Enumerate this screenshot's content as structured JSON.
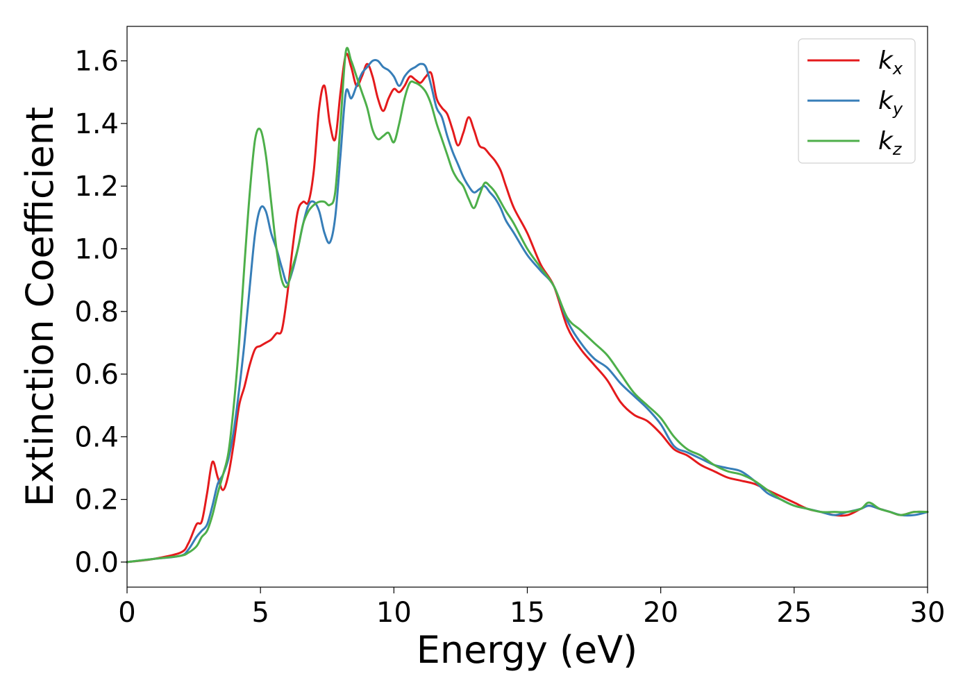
{
  "chart_data": {
    "type": "line",
    "xlabel": "Energy (eV)",
    "ylabel": "Extinction Coefficient",
    "xlim": [
      0,
      30
    ],
    "ylim": [
      -0.08,
      1.71
    ],
    "xticks": [
      0,
      5,
      10,
      15,
      20,
      25,
      30
    ],
    "xtick_labels": [
      "0",
      "5",
      "10",
      "15",
      "20",
      "25",
      "30"
    ],
    "yticks": [
      0.0,
      0.2,
      0.4,
      0.6,
      0.8,
      1.0,
      1.2,
      1.4,
      1.6
    ],
    "ytick_labels": [
      "0.0",
      "0.2",
      "0.4",
      "0.6",
      "0.8",
      "1.0",
      "1.2",
      "1.4",
      "1.6"
    ],
    "grid": false,
    "legend_position": "top-right",
    "series": [
      {
        "name": "k",
        "subscript": "x",
        "color": "#e41a1c",
        "x": [
          0,
          1,
          2,
          2.3,
          2.6,
          2.8,
          3.0,
          3.2,
          3.4,
          3.6,
          3.8,
          4.0,
          4.2,
          4.4,
          4.6,
          4.8,
          5.0,
          5.2,
          5.4,
          5.6,
          5.8,
          6.0,
          6.2,
          6.4,
          6.6,
          6.8,
          7.0,
          7.2,
          7.4,
          7.6,
          7.8,
          8.0,
          8.2,
          8.4,
          8.6,
          8.8,
          9.0,
          9.2,
          9.4,
          9.6,
          9.8,
          10.0,
          10.2,
          10.4,
          10.6,
          10.8,
          11.0,
          11.2,
          11.4,
          11.6,
          11.8,
          12.0,
          12.2,
          12.4,
          12.6,
          12.8,
          13.0,
          13.2,
          13.4,
          13.6,
          13.8,
          14.0,
          14.2,
          14.5,
          15.0,
          15.5,
          16.0,
          16.5,
          17.0,
          17.5,
          18.0,
          18.5,
          19.0,
          19.5,
          20.0,
          20.5,
          21.0,
          21.5,
          22.0,
          22.5,
          23.0,
          23.5,
          24.0,
          24.5,
          25.0,
          25.5,
          26.0,
          26.5,
          27.0,
          27.5,
          27.8,
          28.2,
          28.6,
          29.0,
          29.5,
          30.0
        ],
        "y": [
          0.0,
          0.01,
          0.03,
          0.06,
          0.12,
          0.13,
          0.22,
          0.32,
          0.27,
          0.23,
          0.28,
          0.38,
          0.5,
          0.56,
          0.63,
          0.68,
          0.69,
          0.7,
          0.71,
          0.73,
          0.74,
          0.85,
          1.0,
          1.12,
          1.15,
          1.15,
          1.25,
          1.45,
          1.52,
          1.4,
          1.35,
          1.5,
          1.62,
          1.58,
          1.52,
          1.55,
          1.59,
          1.55,
          1.48,
          1.44,
          1.48,
          1.51,
          1.5,
          1.52,
          1.55,
          1.54,
          1.53,
          1.55,
          1.56,
          1.48,
          1.45,
          1.43,
          1.38,
          1.33,
          1.37,
          1.42,
          1.38,
          1.33,
          1.32,
          1.3,
          1.28,
          1.25,
          1.2,
          1.13,
          1.05,
          0.95,
          0.88,
          0.75,
          0.68,
          0.63,
          0.58,
          0.51,
          0.47,
          0.45,
          0.41,
          0.36,
          0.34,
          0.31,
          0.29,
          0.27,
          0.26,
          0.25,
          0.23,
          0.21,
          0.19,
          0.17,
          0.16,
          0.15,
          0.15,
          0.17,
          0.18,
          0.17,
          0.16,
          0.15,
          0.16,
          0.16
        ]
      },
      {
        "name": "k",
        "subscript": "y",
        "color": "#377eb8",
        "x": [
          0,
          1,
          2,
          2.3,
          2.6,
          2.8,
          3.0,
          3.2,
          3.4,
          3.6,
          3.8,
          4.0,
          4.2,
          4.4,
          4.6,
          4.8,
          5.0,
          5.2,
          5.4,
          5.6,
          5.8,
          6.0,
          6.2,
          6.4,
          6.6,
          6.8,
          7.0,
          7.2,
          7.4,
          7.6,
          7.8,
          8.0,
          8.2,
          8.4,
          8.6,
          8.8,
          9.0,
          9.2,
          9.4,
          9.6,
          9.8,
          10.0,
          10.2,
          10.4,
          10.6,
          10.8,
          11.0,
          11.2,
          11.4,
          11.6,
          11.8,
          12.0,
          12.2,
          12.4,
          12.6,
          12.8,
          13.0,
          13.2,
          13.4,
          13.6,
          13.8,
          14.0,
          14.2,
          14.5,
          15.0,
          15.5,
          16.0,
          16.5,
          17.0,
          17.5,
          18.0,
          18.5,
          19.0,
          19.5,
          20.0,
          20.5,
          21.0,
          21.5,
          22.0,
          22.5,
          23.0,
          23.5,
          24.0,
          24.5,
          25.0,
          25.5,
          26.0,
          26.5,
          27.0,
          27.5,
          27.8,
          28.2,
          28.6,
          29.0,
          29.5,
          30.0
        ],
        "y": [
          0.0,
          0.01,
          0.02,
          0.04,
          0.08,
          0.1,
          0.12,
          0.18,
          0.25,
          0.28,
          0.33,
          0.42,
          0.55,
          0.7,
          0.88,
          1.05,
          1.13,
          1.12,
          1.05,
          1.0,
          0.94,
          0.89,
          0.93,
          1.0,
          1.08,
          1.14,
          1.15,
          1.12,
          1.05,
          1.02,
          1.1,
          1.3,
          1.5,
          1.48,
          1.52,
          1.56,
          1.58,
          1.6,
          1.6,
          1.58,
          1.57,
          1.55,
          1.52,
          1.55,
          1.57,
          1.58,
          1.59,
          1.58,
          1.52,
          1.45,
          1.42,
          1.36,
          1.31,
          1.27,
          1.23,
          1.2,
          1.18,
          1.19,
          1.2,
          1.18,
          1.16,
          1.13,
          1.09,
          1.05,
          0.98,
          0.93,
          0.88,
          0.77,
          0.7,
          0.65,
          0.62,
          0.57,
          0.53,
          0.49,
          0.44,
          0.37,
          0.35,
          0.33,
          0.31,
          0.3,
          0.29,
          0.26,
          0.22,
          0.2,
          0.18,
          0.17,
          0.16,
          0.15,
          0.16,
          0.17,
          0.18,
          0.17,
          0.16,
          0.15,
          0.15,
          0.16
        ]
      },
      {
        "name": "k",
        "subscript": "z",
        "color": "#4daf4a",
        "x": [
          0,
          1,
          2,
          2.3,
          2.6,
          2.8,
          3.0,
          3.2,
          3.4,
          3.6,
          3.8,
          4.0,
          4.2,
          4.4,
          4.6,
          4.8,
          5.0,
          5.2,
          5.4,
          5.6,
          5.8,
          6.0,
          6.2,
          6.4,
          6.6,
          6.8,
          7.0,
          7.2,
          7.4,
          7.6,
          7.8,
          8.0,
          8.2,
          8.4,
          8.6,
          8.8,
          9.0,
          9.2,
          9.4,
          9.6,
          9.8,
          10.0,
          10.2,
          10.4,
          10.6,
          10.8,
          11.0,
          11.2,
          11.4,
          11.6,
          11.8,
          12.0,
          12.2,
          12.4,
          12.6,
          12.8,
          13.0,
          13.2,
          13.4,
          13.6,
          13.8,
          14.0,
          14.2,
          14.5,
          15.0,
          15.5,
          16.0,
          16.5,
          17.0,
          17.5,
          18.0,
          18.5,
          19.0,
          19.5,
          20.0,
          20.5,
          21.0,
          21.5,
          22.0,
          22.5,
          23.0,
          23.5,
          24.0,
          24.5,
          25.0,
          25.5,
          26.0,
          26.5,
          27.0,
          27.5,
          27.8,
          28.2,
          28.6,
          29.0,
          29.5,
          30.0
        ],
        "y": [
          0.0,
          0.01,
          0.02,
          0.03,
          0.05,
          0.08,
          0.1,
          0.15,
          0.22,
          0.28,
          0.35,
          0.5,
          0.7,
          0.95,
          1.18,
          1.35,
          1.38,
          1.3,
          1.15,
          1.0,
          0.9,
          0.88,
          0.94,
          1.0,
          1.08,
          1.12,
          1.14,
          1.15,
          1.15,
          1.14,
          1.18,
          1.4,
          1.63,
          1.6,
          1.55,
          1.5,
          1.45,
          1.38,
          1.35,
          1.36,
          1.37,
          1.34,
          1.4,
          1.48,
          1.53,
          1.53,
          1.52,
          1.5,
          1.46,
          1.4,
          1.35,
          1.3,
          1.25,
          1.22,
          1.2,
          1.16,
          1.13,
          1.17,
          1.21,
          1.2,
          1.18,
          1.15,
          1.12,
          1.08,
          1.0,
          0.94,
          0.88,
          0.78,
          0.74,
          0.7,
          0.66,
          0.6,
          0.54,
          0.5,
          0.46,
          0.4,
          0.36,
          0.34,
          0.31,
          0.29,
          0.28,
          0.26,
          0.23,
          0.2,
          0.18,
          0.17,
          0.16,
          0.16,
          0.16,
          0.17,
          0.19,
          0.17,
          0.16,
          0.15,
          0.16,
          0.16
        ]
      }
    ]
  }
}
